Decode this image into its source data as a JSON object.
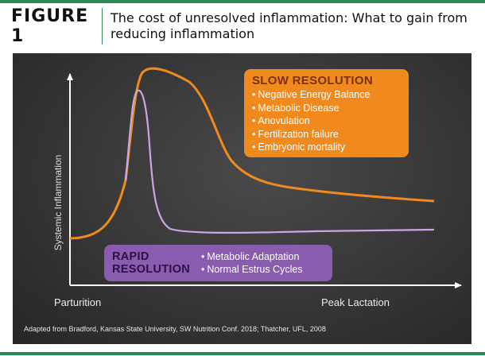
{
  "figure": {
    "label": "FIGURE 1",
    "title": "The cost of unresolved inflammation: What to gain from reducing inflammation"
  },
  "diagram": {
    "y_axis_label": "Systemic Inflammation",
    "x_axis_start_label": "Parturition",
    "x_axis_end_label": "Peak Lactation",
    "slow_resolution": {
      "title": "SLOW RESOLUTION",
      "color": "#f08a1e",
      "items": [
        "Negative Energy Balance",
        "Metabolic Disease",
        "Anovulation",
        "Fertilization failure",
        "Embryonic mortality"
      ]
    },
    "rapid_resolution": {
      "title": "RAPID RESOLUTION",
      "color": "#8a5cb0",
      "items": [
        "Metabolic Adaptation",
        "Normal Estrus Cycles"
      ]
    },
    "source": "Adapted from Bradford, Kansas State University, SW Nutrition Conf. 2018; Thatcher, UFL, 2008"
  },
  "colors": {
    "accent": "#2e8b57",
    "board": "#3a3a3a",
    "slow_curve": "#f08a1e",
    "rapid_curve": "#c9a6e4"
  }
}
